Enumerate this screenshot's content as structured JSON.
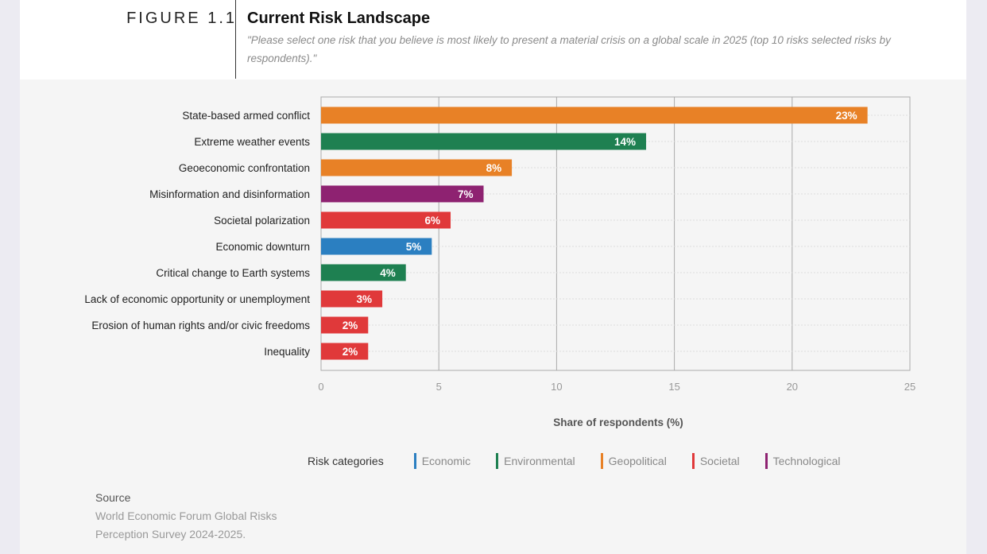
{
  "header": {
    "figure_label": "FIGURE 1.1",
    "title": "Current Risk Landscape",
    "subtitle": "\"Please select one risk that you believe is most likely to present a material crisis on a global scale in 2025 (top 10 risks selected risks by respondents).\""
  },
  "chart_data": {
    "type": "bar",
    "orientation": "horizontal",
    "categories": [
      "State-based armed conflict",
      "Extreme weather events",
      "Geoeconomic confrontation",
      "Misinformation and disinformation",
      "Societal polarization",
      "Economic downturn",
      "Critical change to Earth systems",
      "Lack of economic opportunity or unemployment",
      "Erosion of human rights and/or civic freedoms",
      "Inequality"
    ],
    "values": [
      23.2,
      13.8,
      8.1,
      6.9,
      5.5,
      4.7,
      3.6,
      2.6,
      2.0,
      2.0
    ],
    "labels": [
      "23%",
      "14%",
      "8%",
      "7%",
      "6%",
      "5%",
      "4%",
      "3%",
      "2%",
      "2%"
    ],
    "bar_categories": [
      "Geopolitical",
      "Environmental",
      "Geopolitical",
      "Technological",
      "Societal",
      "Economic",
      "Environmental",
      "Societal",
      "Societal",
      "Societal"
    ],
    "xlabel": "Share of respondents (%)",
    "xlim": [
      0,
      25
    ],
    "xticks": [
      "0",
      "5",
      "10",
      "15",
      "20",
      "25"
    ],
    "grid": true,
    "legend_placement": "bottom"
  },
  "legend": {
    "title": "Risk categories",
    "items": [
      {
        "label": "Economic",
        "color": "#2b7fc1"
      },
      {
        "label": "Environmental",
        "color": "#1e8051"
      },
      {
        "label": "Geopolitical",
        "color": "#e88126"
      },
      {
        "label": "Societal",
        "color": "#e0393a"
      },
      {
        "label": "Technological",
        "color": "#8e2271"
      }
    ]
  },
  "source": {
    "heading": "Source",
    "line1": "World Economic Forum Global Risks",
    "line2": "Perception Survey 2024-2025."
  }
}
